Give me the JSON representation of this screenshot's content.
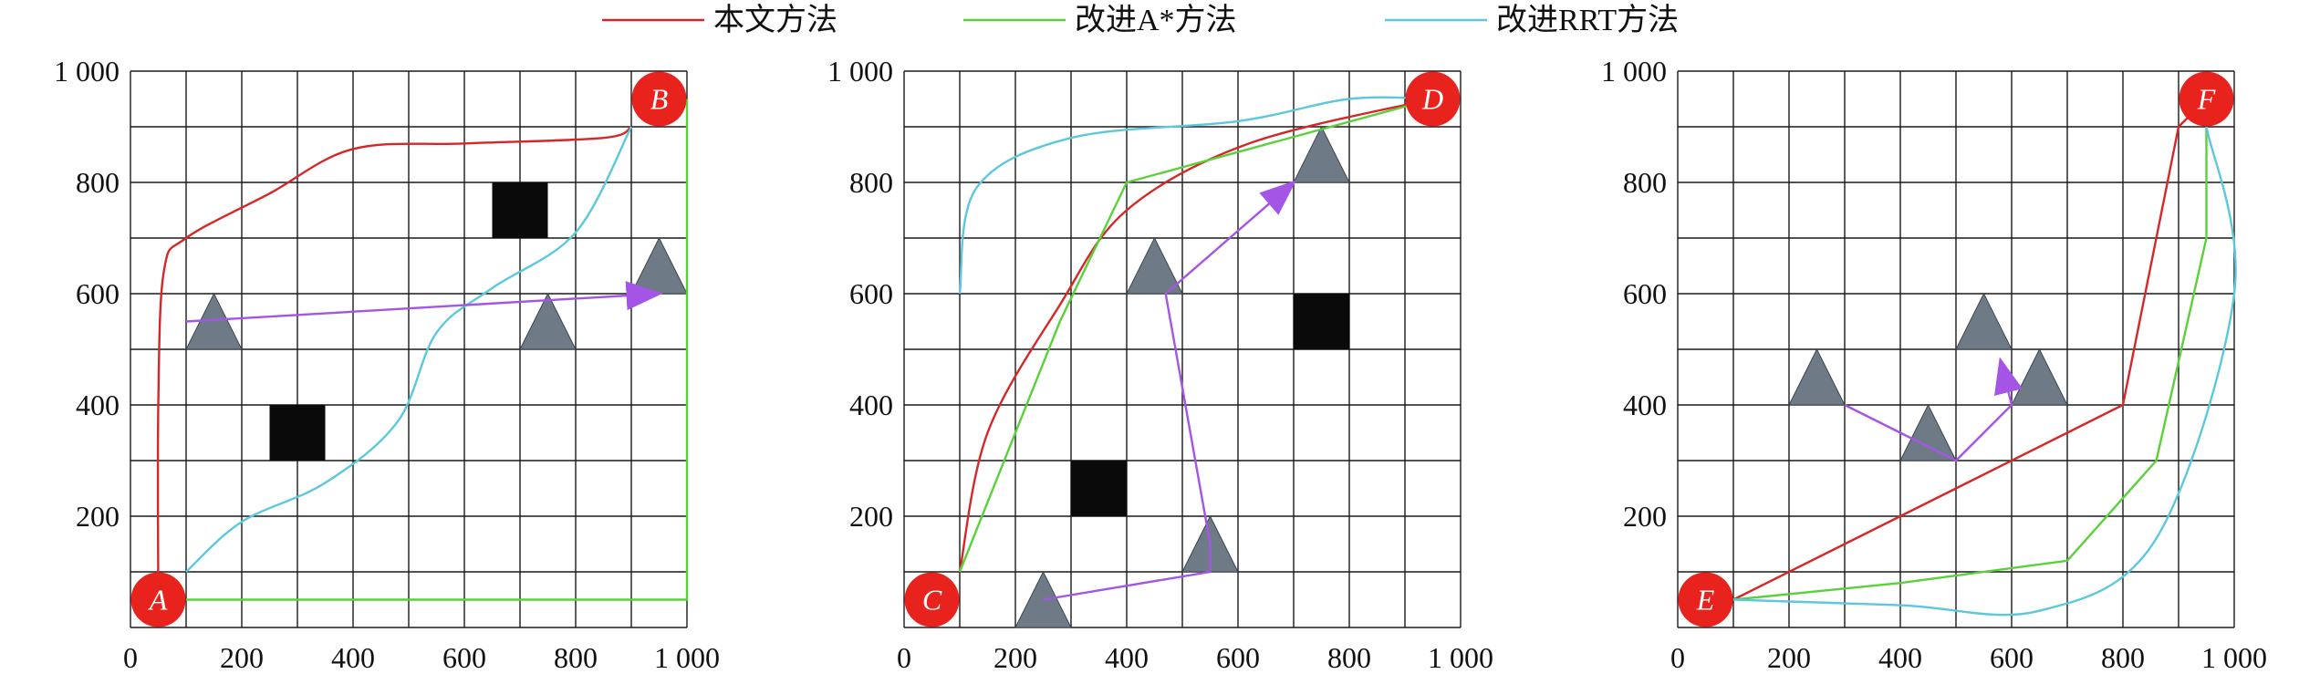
{
  "legend": [
    {
      "label": "本文方法",
      "color": "#d62728"
    },
    {
      "label": "改进A*方法",
      "color": "#5ad13a"
    },
    {
      "label": "改进RRT方法",
      "color": "#5bc8dc"
    }
  ],
  "colors": {
    "obstacle_square": "#0a0a0a",
    "obstacle_triangle": "#6e7b86",
    "marker": "#e8221c",
    "moving_path": "#a455e6",
    "grid": "#1a1a1a"
  },
  "chart_data": [
    {
      "type": "diagram",
      "panel": "left",
      "x_ticks": [
        "0",
        "200",
        "400",
        "600",
        "800",
        "1 000"
      ],
      "y_ticks": [
        "200",
        "400",
        "600",
        "800",
        "1 000"
      ],
      "xlim": [
        0,
        1000
      ],
      "ylim": [
        0,
        1000
      ],
      "start": {
        "label": "A",
        "x": 50,
        "y": 50
      },
      "goal": {
        "label": "B",
        "x": 950,
        "y": 950
      },
      "square_obstacles": [
        [
          300,
          350
        ],
        [
          700,
          750
        ]
      ],
      "triangle_obstacles": [
        [
          150,
          550
        ],
        [
          750,
          550
        ],
        [
          950,
          650
        ]
      ],
      "moving_path": [
        [
          100,
          550
        ],
        [
          950,
          600
        ]
      ],
      "paths": {
        "本文方法": [
          [
            50,
            50
          ],
          [
            50,
            400
          ],
          [
            60,
            640
          ],
          [
            100,
            700
          ],
          [
            250,
            780
          ],
          [
            400,
            860
          ],
          [
            600,
            870
          ],
          [
            850,
            880
          ],
          [
            900,
            900
          ]
        ],
        "改进A*方法": [
          [
            100,
            50
          ],
          [
            1000,
            50
          ],
          [
            1000,
            950
          ]
        ],
        "改进RRT方法": [
          [
            100,
            100
          ],
          [
            200,
            190
          ],
          [
            350,
            260
          ],
          [
            480,
            370
          ],
          [
            550,
            530
          ],
          [
            650,
            610
          ],
          [
            800,
            710
          ],
          [
            900,
            900
          ]
        ]
      }
    },
    {
      "type": "diagram",
      "panel": "middle",
      "x_ticks": [
        "0",
        "200",
        "400",
        "600",
        "800",
        "1 000"
      ],
      "y_ticks": [
        "200",
        "400",
        "600",
        "800",
        "1 000"
      ],
      "xlim": [
        0,
        1000
      ],
      "ylim": [
        0,
        1000
      ],
      "start": {
        "label": "C",
        "x": 50,
        "y": 50
      },
      "goal": {
        "label": "D",
        "x": 950,
        "y": 950
      },
      "square_obstacles": [
        [
          350,
          250
        ],
        [
          750,
          550
        ]
      ],
      "triangle_obstacles": [
        [
          250,
          50
        ],
        [
          550,
          150
        ],
        [
          450,
          650
        ],
        [
          750,
          850
        ]
      ],
      "moving_path": [
        [
          250,
          50
        ],
        [
          550,
          100
        ],
        [
          550,
          150
        ],
        [
          470,
          600
        ],
        [
          700,
          800
        ]
      ],
      "paths": {
        "本文方法": [
          [
            100,
            100
          ],
          [
            150,
            350
          ],
          [
            280,
            580
          ],
          [
            400,
            750
          ],
          [
            620,
            870
          ],
          [
            950,
            950
          ]
        ],
        "改进A*方法": [
          [
            100,
            100
          ],
          [
            280,
            550
          ],
          [
            400,
            800
          ],
          [
            950,
            950
          ]
        ],
        "改进RRT方法": [
          [
            100,
            600
          ],
          [
            130,
            790
          ],
          [
            300,
            880
          ],
          [
            600,
            910
          ],
          [
            800,
            950
          ],
          [
            950,
            950
          ]
        ]
      }
    },
    {
      "type": "diagram",
      "panel": "right",
      "x_ticks": [
        "0",
        "200",
        "400",
        "600",
        "800",
        "1 000"
      ],
      "y_ticks": [
        "200",
        "400",
        "600",
        "800",
        "1 000"
      ],
      "xlim": [
        0,
        1000
      ],
      "ylim": [
        0,
        1000
      ],
      "start": {
        "label": "E",
        "x": 50,
        "y": 50
      },
      "goal": {
        "label": "F",
        "x": 950,
        "y": 950
      },
      "square_obstacles": [],
      "triangle_obstacles": [
        [
          250,
          450
        ],
        [
          450,
          350
        ],
        [
          550,
          550
        ],
        [
          650,
          450
        ]
      ],
      "moving_path": [
        [
          300,
          400
        ],
        [
          500,
          300
        ],
        [
          600,
          400
        ],
        [
          580,
          480
        ]
      ],
      "paths": {
        "本文方法": [
          [
            100,
            50
          ],
          [
            800,
            400
          ],
          [
            900,
            900
          ],
          [
            950,
            950
          ]
        ],
        "改进A*方法": [
          [
            100,
            50
          ],
          [
            400,
            80
          ],
          [
            700,
            120
          ],
          [
            860,
            300
          ],
          [
            950,
            700
          ],
          [
            950,
            900
          ]
        ],
        "改进RRT方法": [
          [
            100,
            50
          ],
          [
            400,
            40
          ],
          [
            650,
            30
          ],
          [
            860,
            160
          ],
          [
            1000,
            600
          ],
          [
            950,
            900
          ]
        ]
      }
    }
  ]
}
